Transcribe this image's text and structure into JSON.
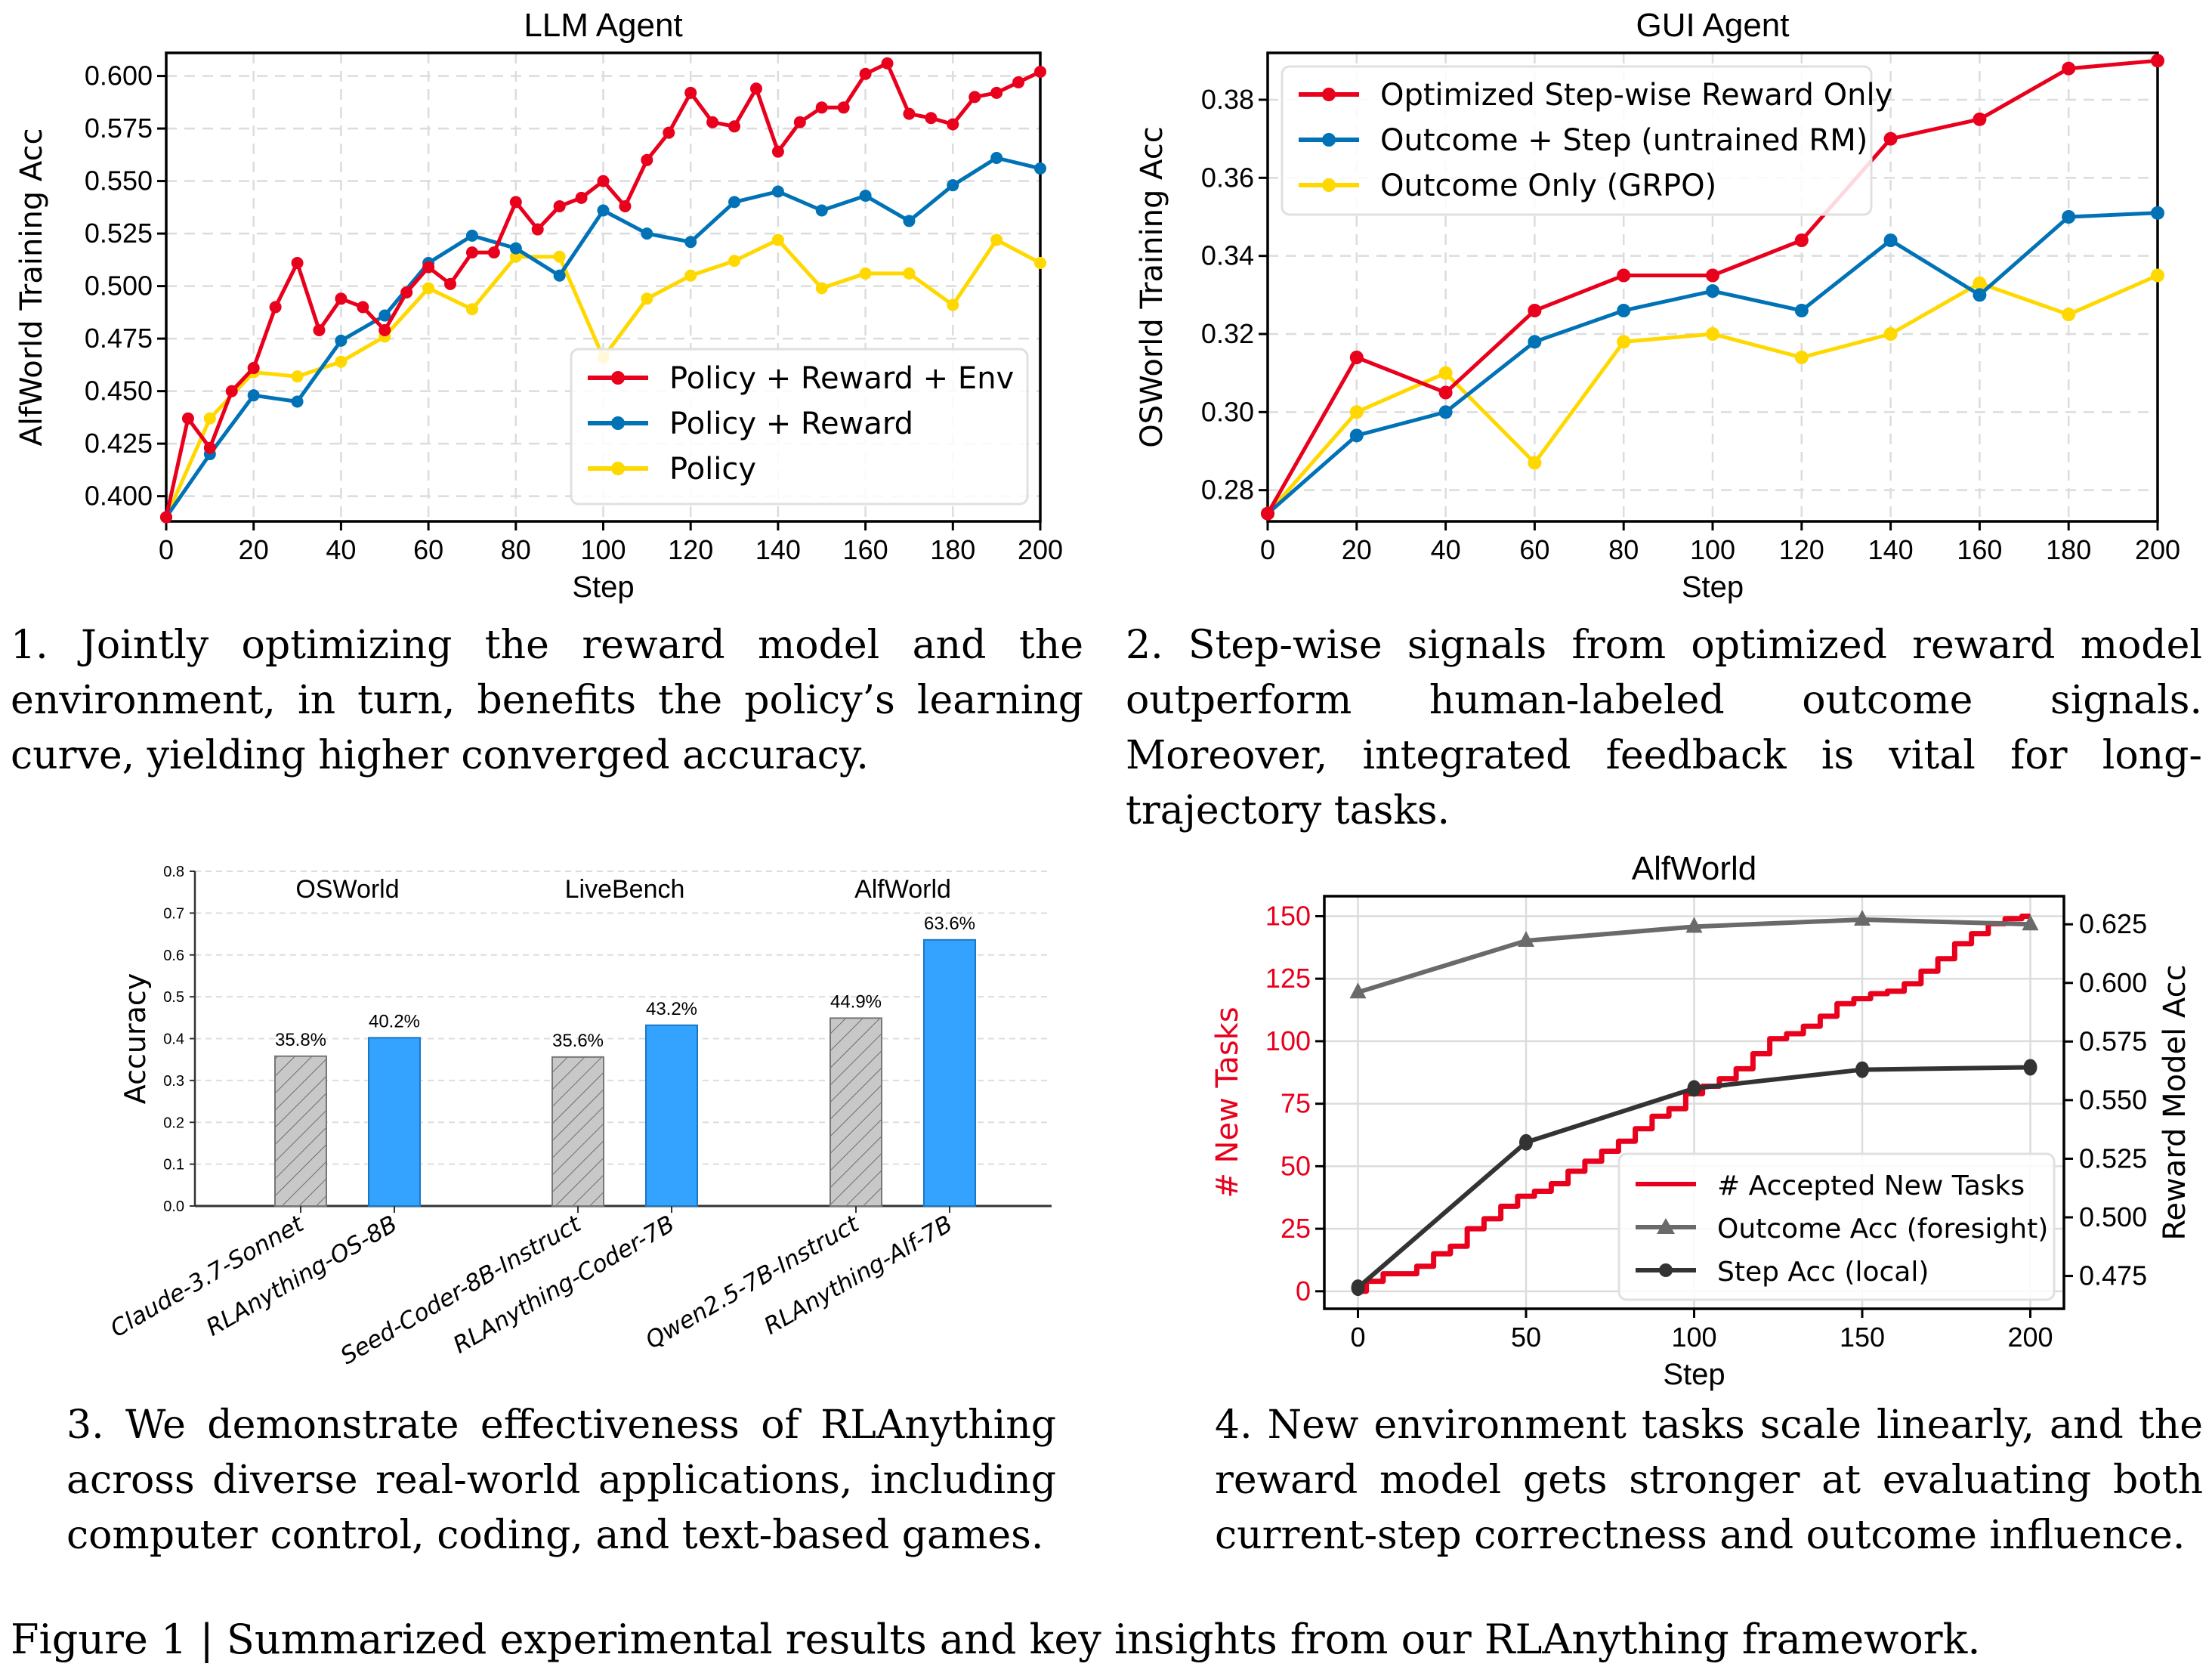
{
  "captions": {
    "panel1": "1.  Jointly optimizing the reward model and the environment, in turn, benefits the policy’s learning curve, yielding higher converged accuracy.",
    "panel2": "2.  Step-wise signals from optimized reward model outperform human-labeled outcome signals. Moreover, integrated feedback is vital for long-trajectory tasks.",
    "panel3": "3. We demonstrate effectiveness of RLAnything across diverse real-world applications, including computer control, coding, and text-based games.",
    "panel4": "4. New environment tasks scale linearly, and the reward model gets stronger at evaluating both current-step correctness and outcome influence.",
    "figure": "Figure 1 | Summarized experimental results and key insights from our RLAnything framework."
  },
  "colors": {
    "red": "#e8001c",
    "blue": "#0072b5",
    "yellow": "#ffd800",
    "bar_blue": "#33a3ff",
    "bar_gray": "#c8c8c8",
    "gray_line": "#6a6a6a",
    "dark_line": "#333333"
  },
  "chart_data": [
    {
      "type": "line",
      "title": "LLM Agent",
      "xlabel": "Step",
      "ylabel": "AlfWorld Training Acc",
      "xlim": [
        0,
        200
      ],
      "ylim": [
        0.388,
        0.611
      ],
      "xticks": [
        0,
        20,
        40,
        60,
        80,
        100,
        120,
        140,
        160,
        180,
        200
      ],
      "yticks": [
        0.4,
        0.425,
        0.45,
        0.475,
        0.5,
        0.525,
        0.55,
        0.575,
        0.6
      ],
      "ytick_labels": [
        "0.400",
        "0.425",
        "0.450",
        "0.475",
        "0.500",
        "0.525",
        "0.550",
        "0.575",
        "0.600"
      ],
      "grid": true,
      "legend_position": "lower-right",
      "series": [
        {
          "name": "Policy + Reward + Env",
          "color": "#e8001c",
          "x": [
            0,
            5,
            10,
            15,
            20,
            25,
            30,
            35,
            40,
            45,
            50,
            55,
            60,
            65,
            70,
            75,
            80,
            85,
            90,
            95,
            100,
            105,
            110,
            115,
            120,
            125,
            130,
            135,
            140,
            145,
            150,
            155,
            160,
            165,
            170,
            175,
            180,
            185,
            190,
            195,
            200
          ],
          "y": [
            0.39,
            0.437,
            0.423,
            0.45,
            0.461,
            0.49,
            0.511,
            0.479,
            0.494,
            0.49,
            0.479,
            0.497,
            0.509,
            0.501,
            0.516,
            0.516,
            0.54,
            0.527,
            0.538,
            0.542,
            0.55,
            0.538,
            0.56,
            0.573,
            0.592,
            0.578,
            0.576,
            0.594,
            0.564,
            0.578,
            0.585,
            0.585,
            0.601,
            0.606,
            0.582,
            0.58,
            0.577,
            0.59,
            0.592,
            0.597,
            0.602
          ]
        },
        {
          "name": "Policy + Reward",
          "color": "#0072b5",
          "x": [
            0,
            10,
            20,
            30,
            40,
            50,
            60,
            70,
            80,
            90,
            100,
            110,
            120,
            130,
            140,
            150,
            160,
            170,
            180,
            190,
            200
          ],
          "y": [
            0.39,
            0.42,
            0.448,
            0.445,
            0.474,
            0.486,
            0.511,
            0.524,
            0.518,
            0.505,
            0.536,
            0.525,
            0.521,
            0.54,
            0.545,
            0.536,
            0.543,
            0.531,
            0.548,
            0.561,
            0.556
          ]
        },
        {
          "name": "Policy",
          "color": "#ffd800",
          "x": [
            0,
            10,
            20,
            30,
            40,
            50,
            60,
            70,
            80,
            90,
            100,
            110,
            120,
            130,
            140,
            150,
            160,
            170,
            180,
            190,
            200
          ],
          "y": [
            0.39,
            0.437,
            0.459,
            0.457,
            0.464,
            0.476,
            0.499,
            0.489,
            0.514,
            0.514,
            0.466,
            0.494,
            0.505,
            0.512,
            0.522,
            0.499,
            0.506,
            0.506,
            0.491,
            0.522,
            0.511
          ]
        }
      ]
    },
    {
      "type": "line",
      "title": "GUI Agent",
      "xlabel": "Step",
      "ylabel": "OSWorld Training Acc",
      "xlim": [
        0,
        200
      ],
      "ylim": [
        0.272,
        0.392
      ],
      "xticks": [
        0,
        20,
        40,
        60,
        80,
        100,
        120,
        140,
        160,
        180,
        200
      ],
      "yticks": [
        0.28,
        0.3,
        0.32,
        0.34,
        0.36,
        0.38
      ],
      "ytick_labels": [
        "0.28",
        "0.30",
        "0.32",
        "0.34",
        "0.36",
        "0.38"
      ],
      "grid": true,
      "legend_position": "upper-left",
      "series": [
        {
          "name": "Optimized Step-wise Reward Only",
          "color": "#e8001c",
          "x": [
            0,
            20,
            40,
            60,
            80,
            100,
            120,
            140,
            160,
            180,
            200
          ],
          "y": [
            0.274,
            0.314,
            0.305,
            0.326,
            0.335,
            0.335,
            0.344,
            0.37,
            0.375,
            0.388,
            0.39
          ]
        },
        {
          "name": "Outcome + Step (untrained RM)",
          "color": "#0072b5",
          "x": [
            0,
            20,
            40,
            60,
            80,
            100,
            120,
            140,
            160,
            180,
            200
          ],
          "y": [
            0.274,
            0.294,
            0.3,
            0.318,
            0.326,
            0.331,
            0.326,
            0.344,
            0.33,
            0.35,
            0.351
          ]
        },
        {
          "name": "Outcome Only (GRPO)",
          "color": "#ffd800",
          "x": [
            0,
            20,
            40,
            60,
            80,
            100,
            120,
            140,
            160,
            180,
            200
          ],
          "y": [
            0.274,
            0.3,
            0.31,
            0.287,
            0.318,
            0.32,
            0.314,
            0.32,
            0.333,
            0.325,
            0.335
          ]
        }
      ]
    },
    {
      "type": "bar",
      "title": "",
      "xlabel": "",
      "ylabel": "Accuracy",
      "ylim": [
        0,
        0.8
      ],
      "yticks": [
        0.0,
        0.1,
        0.2,
        0.3,
        0.4,
        0.5,
        0.6,
        0.7,
        0.8
      ],
      "ytick_labels": [
        "0.0",
        "0.1",
        "0.2",
        "0.3",
        "0.4",
        "0.5",
        "0.6",
        "0.7",
        "0.8"
      ],
      "grid": true,
      "groups": [
        {
          "name": "OSWorld",
          "bars": [
            {
              "label": "Claude-3.7-Sonnet",
              "value": 0.358,
              "value_label": "35.8%",
              "style": "baseline"
            },
            {
              "label": "RLAnything-OS-8B",
              "value": 0.402,
              "value_label": "40.2%",
              "style": "ours"
            }
          ]
        },
        {
          "name": "LiveBench",
          "bars": [
            {
              "label": "Seed-Coder-8B-Instruct",
              "value": 0.356,
              "value_label": "35.6%",
              "style": "baseline"
            },
            {
              "label": "RLAnything-Coder-7B",
              "value": 0.432,
              "value_label": "43.2%",
              "style": "ours"
            }
          ]
        },
        {
          "name": "AlfWorld",
          "bars": [
            {
              "label": "Qwen2.5-7B-Instruct",
              "value": 0.449,
              "value_label": "44.9%",
              "style": "baseline"
            },
            {
              "label": "RLAnything-Alf-7B",
              "value": 0.636,
              "value_label": "63.6%",
              "style": "ours"
            }
          ]
        }
      ]
    },
    {
      "type": "line",
      "title": "AlfWorld",
      "xlabel": "Step",
      "ylabel": "# New Tasks",
      "ylabel_right": "Reward Model Acc",
      "xlim": [
        -10,
        210
      ],
      "ylim": [
        -7,
        158
      ],
      "ylim_right": [
        0.461,
        0.637
      ],
      "xticks": [
        0,
        50,
        100,
        150,
        200
      ],
      "yticks": [
        0,
        25,
        50,
        75,
        100,
        125,
        150
      ],
      "yticks_right": [
        0.475,
        0.5,
        0.525,
        0.55,
        0.575,
        0.6,
        0.625
      ],
      "ytick_labels_right": [
        "0.475",
        "0.500",
        "0.525",
        "0.550",
        "0.575",
        "0.600",
        "0.625"
      ],
      "grid": true,
      "legend_position": "lower-right",
      "series": [
        {
          "name": "# Accepted New Tasks",
          "axis": "left",
          "color": "#e8001c",
          "marker": "none",
          "x": [
            0,
            5,
            10,
            15,
            20,
            25,
            30,
            35,
            40,
            45,
            50,
            55,
            60,
            65,
            70,
            75,
            80,
            85,
            90,
            95,
            100,
            105,
            110,
            115,
            120,
            125,
            130,
            135,
            140,
            145,
            150,
            155,
            160,
            165,
            170,
            175,
            180,
            185,
            190,
            195,
            200
          ],
          "y": [
            0,
            4,
            7,
            7,
            10,
            15,
            18,
            25,
            29,
            34,
            38,
            40,
            43,
            48,
            52,
            56,
            60,
            65,
            70,
            73,
            79,
            82,
            85,
            89,
            95,
            101,
            103,
            106,
            110,
            115,
            117,
            119,
            120,
            123,
            128,
            133,
            139,
            143,
            147,
            149,
            150
          ]
        },
        {
          "name": "Outcome Acc (foresight)",
          "axis": "right",
          "color": "#6a6a6a",
          "marker": "triangle",
          "x": [
            0,
            50,
            100,
            150,
            200
          ],
          "y": [
            0.596,
            0.618,
            0.624,
            0.627,
            0.625
          ]
        },
        {
          "name": "Step Acc (local)",
          "axis": "right",
          "color": "#333333",
          "marker": "circle",
          "x": [
            0,
            50,
            100,
            150,
            200
          ],
          "y": [
            0.47,
            0.532,
            0.555,
            0.563,
            0.564
          ]
        }
      ]
    }
  ]
}
